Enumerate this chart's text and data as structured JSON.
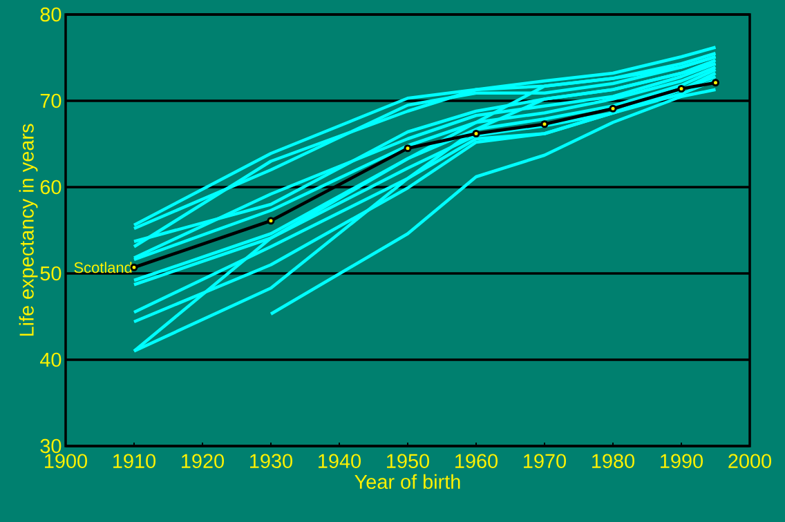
{
  "chart_data": {
    "type": "line",
    "xlabel": "Year of birth",
    "ylabel": "Life expectancy in years",
    "x": [
      1910,
      1930,
      1950,
      1960,
      1970,
      1980,
      1990,
      1995
    ],
    "xlim": [
      1900,
      2000
    ],
    "xticks": [
      1900,
      1910,
      1920,
      1930,
      1940,
      1950,
      1960,
      1970,
      1980,
      1990,
      2000
    ],
    "ylim": [
      30,
      80
    ],
    "yticks": [
      30,
      40,
      50,
      60,
      70,
      80
    ],
    "grid": "y",
    "legend": false,
    "series": [
      {
        "color": "#00ffff",
        "values": [
          55.6,
          63.9,
          70.3,
          71.3,
          71.7,
          72.6,
          74.3,
          75.5
        ]
      },
      {
        "color": "#00ffff",
        "values": [
          55.2,
          62.0,
          69.5,
          70.9,
          70.9,
          72.0,
          73.9,
          75.1
        ]
      },
      {
        "color": "#00ffff",
        "values": [
          53.1,
          63.0,
          68.8,
          71.3,
          72.3,
          73.2,
          75.1,
          76.2
        ]
      },
      {
        "color": "#00ffff",
        "values": [
          53.7,
          58.0,
          66.4,
          68.8,
          70.2,
          71.3,
          73.2,
          74.7
        ]
      },
      {
        "color": "#00ffff",
        "values": [
          51.8,
          59.2,
          65.6,
          68.3,
          69.4,
          70.5,
          72.8,
          74.3
        ]
      },
      {
        "color": "#00ffff",
        "values": [
          51.6,
          57.3,
          64.8,
          67.5,
          68.6,
          70.2,
          72.3,
          73.9
        ]
      },
      {
        "color": "#00ffff",
        "values": [
          49.2,
          54.6,
          63.3,
          66.7,
          67.9,
          69.4,
          71.8,
          73.6
        ]
      },
      {
        "color": "#00ffff",
        "values": [
          48.7,
          54.1,
          62.2,
          66.0,
          67.1,
          68.6,
          71.3,
          73.2
        ]
      },
      {
        "color": "#00ffff",
        "values": [
          45.5,
          53.1,
          61.0,
          65.6,
          66.2,
          68.6,
          71.3,
          72.8
        ]
      },
      {
        "color": "#00ffff",
        "values": [
          44.4,
          51.0,
          59.9,
          65.2,
          66.2,
          68.6,
          70.8,
          72.4
        ]
      },
      {
        "color": "#00ffff",
        "values": [
          41.0,
          54.1,
          63.3,
          67.5,
          71.7,
          72.6,
          73.9,
          75.1
        ]
      },
      {
        "color": "#00ffff",
        "values": [
          41.0,
          48.3,
          61.0,
          66.7,
          70.2,
          71.3,
          73.2,
          74.3
        ]
      },
      {
        "color": "#00ffff",
        "x": [
          1930,
          1950,
          1960,
          1970,
          1980,
          1990,
          1995
        ],
        "values": [
          45.3,
          54.6,
          61.2,
          63.7,
          67.5,
          70.5,
          71.3
        ]
      },
      {
        "name": "Scotland",
        "color": "#000000",
        "marker": "circle",
        "values": [
          50.7,
          56.1,
          64.5,
          66.2,
          67.3,
          69.1,
          71.4,
          72.1
        ]
      }
    ]
  }
}
